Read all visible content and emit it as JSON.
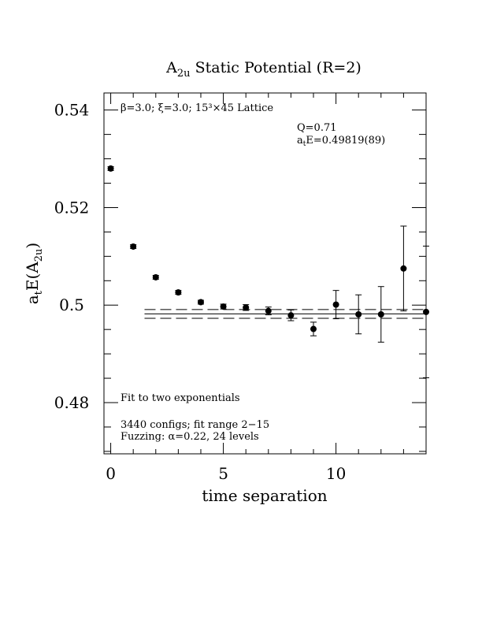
{
  "chart_data": {
    "type": "scatter",
    "title": "A2u Static Potential (R=2)",
    "title_parts": {
      "main": "A",
      "sub": "2u",
      "rest": " Static Potential (R=2)"
    },
    "xlabel": "time separation",
    "ylabel": "at E(A2u)",
    "ylabel_parts": {
      "a": "a",
      "t": "t",
      "E": "E(A",
      "sub": "2u",
      "close": ")"
    },
    "xlim": [
      -0.3,
      14.0
    ],
    "ylim": [
      0.4695,
      0.5435
    ],
    "x_ticks": [
      0,
      5,
      10
    ],
    "x_tick_labels": [
      "0",
      "5",
      "10"
    ],
    "y_ticks": [
      0.48,
      0.5,
      0.52,
      0.54
    ],
    "y_tick_labels": [
      "0.48",
      "0.5",
      "0.52",
      "0.54"
    ],
    "grid": false,
    "points": [
      {
        "x": 0,
        "y": 0.528,
        "err": 0.0004
      },
      {
        "x": 1,
        "y": 0.512,
        "err": 0.0004
      },
      {
        "x": 2,
        "y": 0.5057,
        "err": 0.0004
      },
      {
        "x": 3,
        "y": 0.5026,
        "err": 0.0004
      },
      {
        "x": 4,
        "y": 0.5006,
        "err": 0.0004
      },
      {
        "x": 5,
        "y": 0.4997,
        "err": 0.0005
      },
      {
        "x": 6,
        "y": 0.4995,
        "err": 0.0006
      },
      {
        "x": 7,
        "y": 0.4988,
        "err": 0.0008
      },
      {
        "x": 8,
        "y": 0.4979,
        "err": 0.0011
      },
      {
        "x": 9,
        "y": 0.4951,
        "err": 0.0014
      },
      {
        "x": 10,
        "y": 0.5001,
        "err": 0.0029
      },
      {
        "x": 11,
        "y": 0.4981,
        "err": 0.004
      },
      {
        "x": 12,
        "y": 0.4981,
        "err": 0.0057
      },
      {
        "x": 13,
        "y": 0.5075,
        "err": 0.0087
      },
      {
        "x": 14,
        "y": 0.4986,
        "err": 0.0135
      }
    ],
    "fit": {
      "value": 0.49819,
      "err": 0.00089,
      "x_start": 1.5,
      "x_end": 14.0
    },
    "annotations": {
      "lattice": "β=3.0; ξ=3.0; 15³×45 Lattice",
      "q": "Q=0.71",
      "energy_a": "a",
      "energy_t": "t",
      "energy_rest": "E=0.49819(89)",
      "fit_desc": "Fit to two exponentials",
      "configs": "3440 configs; fit range 2−15",
      "fuzzing": "Fuzzing: α=0.22, 24 levels"
    }
  }
}
